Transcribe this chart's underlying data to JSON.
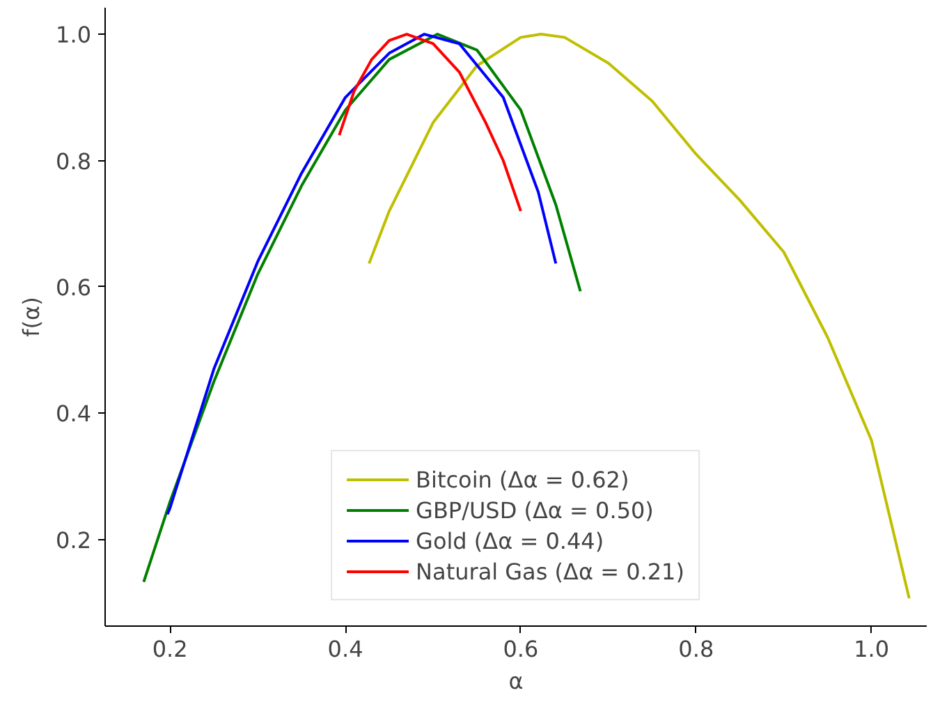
{
  "chart_data": {
    "type": "line",
    "xlabel": "α",
    "ylabel": "f(α)",
    "xlim": [
      0.126,
      1.063
    ],
    "ylim": [
      0.063,
      1.042
    ],
    "xticks": [
      0.2,
      0.4,
      0.6,
      0.8,
      {
        "value": 1,
        "label": "1.0"
      }
    ],
    "yticks": [
      0.2,
      0.4,
      0.6,
      0.8,
      {
        "value": 1,
        "label": "1.0"
      }
    ],
    "grid": false,
    "legend": "bottom",
    "line_style": "solid",
    "marker": "none",
    "series": [
      {
        "name": "Bitcoin (Δα = 0.62)",
        "color": "#bfbf00",
        "x": [
          0.427,
          0.45,
          0.5,
          0.55,
          0.6,
          0.623,
          0.65,
          0.7,
          0.75,
          0.8,
          0.85,
          0.9,
          0.95,
          1.0,
          1.043
        ],
        "values": [
          0.637,
          0.72,
          0.86,
          0.95,
          0.995,
          1.0,
          0.995,
          0.954,
          0.894,
          0.81,
          0.737,
          0.655,
          0.52,
          0.357,
          0.107
        ]
      },
      {
        "name": "GBP/USD (Δα = 0.50)",
        "color": "#008000",
        "x": [
          0.17,
          0.2,
          0.25,
          0.3,
          0.35,
          0.4,
          0.45,
          0.505,
          0.55,
          0.6,
          0.64,
          0.668
        ],
        "values": [
          0.133,
          0.26,
          0.45,
          0.62,
          0.76,
          0.88,
          0.96,
          1.0,
          0.975,
          0.88,
          0.73,
          0.593
        ]
      },
      {
        "name": "Gold (Δα = 0.44)",
        "color": "#0000ff",
        "x": [
          0.197,
          0.2,
          0.25,
          0.3,
          0.35,
          0.4,
          0.45,
          0.49,
          0.53,
          0.58,
          0.62,
          0.64
        ],
        "values": [
          0.24,
          0.25,
          0.47,
          0.64,
          0.78,
          0.9,
          0.97,
          1.0,
          0.985,
          0.9,
          0.75,
          0.637
        ]
      },
      {
        "name": "Natural Gas (Δα = 0.21)",
        "color": "#ff0000",
        "x": [
          0.393,
          0.41,
          0.43,
          0.45,
          0.47,
          0.5,
          0.53,
          0.56,
          0.58,
          0.6
        ],
        "values": [
          0.84,
          0.91,
          0.96,
          0.99,
          1.0,
          0.985,
          0.94,
          0.86,
          0.8,
          0.72
        ]
      }
    ]
  }
}
